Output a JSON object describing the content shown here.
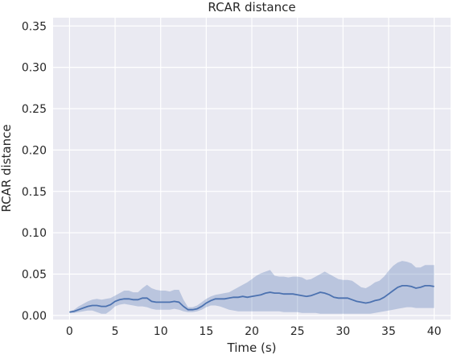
{
  "chart_data": {
    "type": "line",
    "title": "RCAR distance",
    "xlabel": "Time (s)",
    "ylabel": "RCAR distance",
    "xlim": [
      -1.8,
      41.8
    ],
    "ylim": [
      -0.005,
      0.36
    ],
    "xticks": [
      0,
      5,
      10,
      15,
      20,
      25,
      30,
      35,
      40
    ],
    "yticks": [
      0.0,
      0.05,
      0.1,
      0.15,
      0.2,
      0.25,
      0.3,
      0.35
    ],
    "xtick_labels": [
      "0",
      "5",
      "10",
      "15",
      "20",
      "25",
      "30",
      "35",
      "40"
    ],
    "ytick_labels": [
      "0.00",
      "0.05",
      "0.10",
      "0.15",
      "0.20",
      "0.25",
      "0.30",
      "0.35"
    ],
    "grid": true,
    "background": "#eaeaf2",
    "line_color": "#4c72b0",
    "band_color": "#4c72b0",
    "series": [
      {
        "x": [
          0,
          0.5,
          1,
          1.5,
          2,
          2.5,
          3,
          3.5,
          4,
          4.5,
          5,
          5.5,
          6,
          6.5,
          7,
          7.5,
          8,
          8.5,
          9,
          9.5,
          10,
          10.5,
          11,
          11.5,
          12,
          12.5,
          13,
          13.5,
          14,
          14.5,
          15,
          15.5,
          16,
          16.5,
          17,
          17.5,
          18,
          18.5,
          19,
          19.5,
          20,
          20.5,
          21,
          21.5,
          22,
          22.5,
          23,
          23.5,
          24,
          24.5,
          25,
          25.5,
          26,
          26.5,
          27,
          27.5,
          28,
          28.5,
          29,
          29.5,
          30,
          30.5,
          31,
          31.5,
          32,
          32.5,
          33,
          33.5,
          34,
          34.5,
          35,
          35.5,
          36,
          36.5,
          37,
          37.5,
          38,
          38.5,
          39,
          39.5,
          40
        ],
        "mean": [
          0.004,
          0.005,
          0.007,
          0.009,
          0.011,
          0.012,
          0.012,
          0.011,
          0.011,
          0.013,
          0.017,
          0.019,
          0.02,
          0.02,
          0.019,
          0.019,
          0.021,
          0.021,
          0.017,
          0.016,
          0.016,
          0.016,
          0.016,
          0.017,
          0.016,
          0.011,
          0.007,
          0.007,
          0.008,
          0.011,
          0.015,
          0.018,
          0.02,
          0.02,
          0.02,
          0.021,
          0.022,
          0.022,
          0.023,
          0.022,
          0.023,
          0.024,
          0.025,
          0.027,
          0.028,
          0.027,
          0.027,
          0.026,
          0.026,
          0.026,
          0.025,
          0.024,
          0.023,
          0.024,
          0.026,
          0.028,
          0.027,
          0.025,
          0.022,
          0.021,
          0.021,
          0.021,
          0.019,
          0.017,
          0.016,
          0.015,
          0.016,
          0.018,
          0.019,
          0.022,
          0.026,
          0.03,
          0.034,
          0.036,
          0.036,
          0.035,
          0.033,
          0.034,
          0.036,
          0.036,
          0.035
        ],
        "lower": [
          0.003,
          0.003,
          0.004,
          0.005,
          0.006,
          0.006,
          0.004,
          0.002,
          0.002,
          0.006,
          0.011,
          0.013,
          0.014,
          0.013,
          0.012,
          0.011,
          0.011,
          0.01,
          0.008,
          0.007,
          0.007,
          0.007,
          0.007,
          0.008,
          0.007,
          0.005,
          0.004,
          0.004,
          0.005,
          0.007,
          0.01,
          0.012,
          0.012,
          0.011,
          0.009,
          0.007,
          0.006,
          0.005,
          0.005,
          0.005,
          0.005,
          0.005,
          0.005,
          0.005,
          0.005,
          0.005,
          0.005,
          0.004,
          0.004,
          0.004,
          0.004,
          0.003,
          0.003,
          0.003,
          0.003,
          0.002,
          0.002,
          0.002,
          0.002,
          0.002,
          0.002,
          0.002,
          0.002,
          0.002,
          0.002,
          0.002,
          0.002,
          0.003,
          0.004,
          0.005,
          0.006,
          0.007,
          0.008,
          0.009,
          0.01,
          0.01,
          0.009,
          0.009,
          0.009,
          0.009,
          0.009
        ],
        "upper": [
          0.005,
          0.007,
          0.011,
          0.014,
          0.017,
          0.019,
          0.02,
          0.019,
          0.02,
          0.021,
          0.024,
          0.027,
          0.03,
          0.03,
          0.028,
          0.028,
          0.033,
          0.037,
          0.033,
          0.031,
          0.03,
          0.03,
          0.029,
          0.031,
          0.031,
          0.019,
          0.01,
          0.01,
          0.012,
          0.016,
          0.02,
          0.023,
          0.025,
          0.026,
          0.027,
          0.028,
          0.031,
          0.034,
          0.037,
          0.04,
          0.044,
          0.048,
          0.051,
          0.053,
          0.055,
          0.048,
          0.047,
          0.047,
          0.046,
          0.047,
          0.047,
          0.046,
          0.043,
          0.044,
          0.047,
          0.05,
          0.053,
          0.05,
          0.047,
          0.044,
          0.043,
          0.043,
          0.042,
          0.038,
          0.034,
          0.033,
          0.036,
          0.04,
          0.042,
          0.047,
          0.054,
          0.06,
          0.064,
          0.066,
          0.065,
          0.063,
          0.058,
          0.058,
          0.061,
          0.061,
          0.061
        ]
      }
    ]
  }
}
